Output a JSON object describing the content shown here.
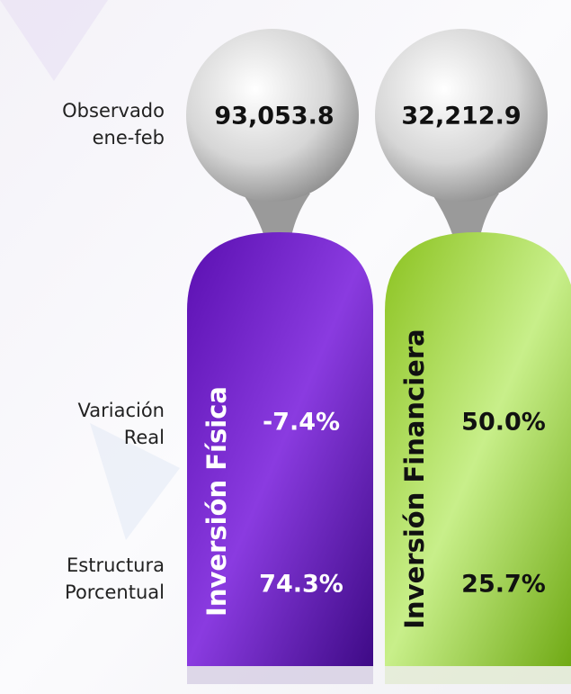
{
  "row_labels": {
    "observed": [
      "Observado",
      "ene-feb"
    ],
    "variation": [
      "Variación",
      "Real"
    ],
    "structure": [
      "Estructura",
      "Porcentual"
    ]
  },
  "columns": [
    {
      "title": "Inversión Física",
      "observed": "93,053.8",
      "variation": "-7.4%",
      "structure": "74.3%"
    },
    {
      "title": "Inversión Financiera",
      "observed": "32,212.9",
      "variation": "50.0%",
      "structure": "25.7%"
    }
  ]
}
